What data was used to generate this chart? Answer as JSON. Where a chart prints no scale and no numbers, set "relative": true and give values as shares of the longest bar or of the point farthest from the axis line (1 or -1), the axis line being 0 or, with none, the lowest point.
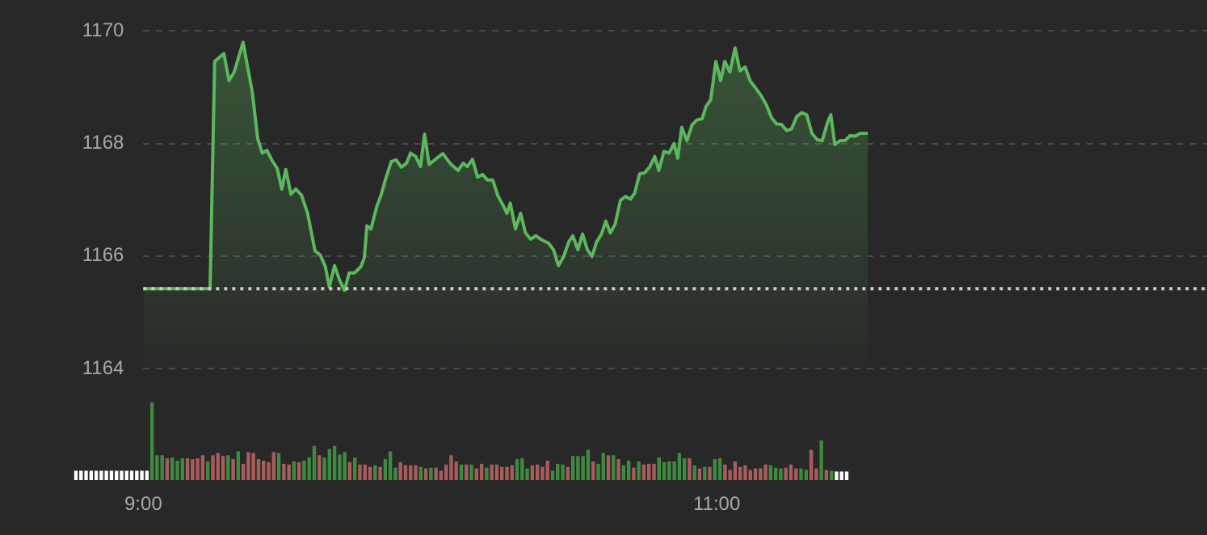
{
  "chart_data": [
    {
      "type": "area",
      "color": "#5cb85c",
      "xlim": [
        9,
        12.71
      ],
      "xticks": [
        {
          "value": 9,
          "label": "9:00"
        },
        {
          "value": 11,
          "label": "11:00"
        }
      ],
      "ylim": [
        1164,
        1170
      ],
      "yticks": [
        1164,
        1166,
        1168,
        1170
      ],
      "grid": "y",
      "ref_lines": [
        {
          "axis": "y",
          "value": 1165.42,
          "color": "#cccccc",
          "line_style": "dotted"
        }
      ],
      "x": [
        9,
        9.233,
        9.249,
        9.281,
        9.299,
        9.317,
        9.348,
        9.38,
        9.399,
        9.415,
        9.431,
        9.449,
        9.467,
        9.483,
        9.497,
        9.515,
        9.532,
        9.552,
        9.573,
        9.599,
        9.617,
        9.635,
        9.649,
        9.667,
        9.684,
        9.702,
        9.718,
        9.737,
        9.759,
        9.771,
        9.78,
        9.794,
        9.815,
        9.829,
        9.847,
        9.865,
        9.882,
        9.9,
        9.918,
        9.932,
        9.95,
        9.967,
        9.981,
        9.997,
        10.024,
        10.045,
        10.073,
        10.098,
        10.116,
        10.13,
        10.148,
        10.166,
        10.183,
        10.201,
        10.219,
        10.236,
        10.254,
        10.268,
        10.28,
        10.298,
        10.316,
        10.333,
        10.351,
        10.369,
        10.392,
        10.413,
        10.431,
        10.448,
        10.466,
        10.484,
        10.498,
        10.516,
        10.532,
        10.549,
        10.565,
        10.581,
        10.598,
        10.613,
        10.629,
        10.646,
        10.664,
        10.682,
        10.699,
        10.714,
        10.731,
        10.749,
        10.767,
        10.784,
        10.798,
        10.816,
        10.834,
        10.851,
        10.864,
        10.878,
        10.896,
        10.914,
        10.931,
        10.949,
        10.963,
        10.979,
        10.997,
        11.014,
        11.028,
        11.046,
        11.064,
        11.081,
        11.099,
        11.117,
        11.138,
        11.155,
        11.173,
        11.191,
        11.208,
        11.226,
        11.244,
        11.261,
        11.279,
        11.297,
        11.314,
        11.332,
        11.35,
        11.368,
        11.386,
        11.398,
        11.412,
        11.43,
        11.447,
        11.465,
        11.483,
        11.5,
        11.527
      ],
      "values": [
        1165.42,
        1165.42,
        1169.46,
        1169.6,
        1169.12,
        1169.27,
        1169.8,
        1168.92,
        1168.09,
        1167.83,
        1167.88,
        1167.7,
        1167.56,
        1167.19,
        1167.54,
        1167.1,
        1167.19,
        1167.08,
        1166.76,
        1166.09,
        1166.02,
        1165.81,
        1165.45,
        1165.83,
        1165.58,
        1165.39,
        1165.7,
        1165.7,
        1165.81,
        1165.97,
        1166.54,
        1166.48,
        1166.89,
        1167.08,
        1167.4,
        1167.68,
        1167.71,
        1167.58,
        1167.65,
        1167.83,
        1167.77,
        1167.59,
        1168.17,
        1167.63,
        1167.74,
        1167.82,
        1167.63,
        1167.52,
        1167.65,
        1167.59,
        1167.72,
        1167.4,
        1167.45,
        1167.35,
        1167.35,
        1167.08,
        1166.91,
        1166.76,
        1166.94,
        1166.48,
        1166.76,
        1166.41,
        1166.3,
        1166.36,
        1166.28,
        1166.23,
        1166.11,
        1165.83,
        1165.99,
        1166.25,
        1166.36,
        1166.11,
        1166.39,
        1166.11,
        1165.99,
        1166.25,
        1166.39,
        1166.62,
        1166.41,
        1166.57,
        1166.99,
        1167.06,
        1167.01,
        1167.12,
        1167.46,
        1167.48,
        1167.59,
        1167.77,
        1167.52,
        1167.86,
        1167.83,
        1168,
        1167.74,
        1168.29,
        1168.05,
        1168.33,
        1168.42,
        1168.44,
        1168.66,
        1168.78,
        1169.46,
        1169.12,
        1169.46,
        1169.27,
        1169.7,
        1169.29,
        1169.36,
        1169.11,
        1168.97,
        1168.85,
        1168.69,
        1168.46,
        1168.35,
        1168.34,
        1168.23,
        1168.26,
        1168.48,
        1168.55,
        1168.51,
        1168.18,
        1168.07,
        1168.05,
        1168.37,
        1168.51,
        1167.98,
        1168.05,
        1168.05,
        1168.14,
        1168.13,
        1168.18,
        1168.18
      ]
    },
    {
      "type": "bar",
      "relative": true,
      "categories": [
        null,
        null,
        null,
        null,
        null,
        null,
        null,
        null,
        null,
        null,
        null,
        null,
        null,
        null,
        null,
        null,
        null,
        null,
        null,
        null,
        null,
        null,
        null,
        null,
        null,
        null,
        null,
        null,
        null,
        null,
        null,
        null,
        null,
        null,
        null,
        null,
        null,
        null,
        null,
        null,
        null,
        null,
        null,
        null,
        null,
        null,
        null,
        null,
        null,
        null,
        null,
        null,
        null,
        null,
        null,
        null,
        null,
        null,
        null,
        null,
        null,
        null,
        null,
        null,
        null,
        null,
        null,
        null,
        null,
        null,
        null,
        null,
        null,
        null,
        null,
        null,
        null,
        null,
        null,
        null,
        null,
        null,
        null,
        null,
        null,
        null,
        null,
        null,
        null,
        null,
        null,
        null,
        null,
        null,
        null,
        null,
        null,
        null,
        null,
        null,
        null,
        null,
        null,
        null,
        null,
        null,
        null,
        null,
        null,
        null,
        null,
        null,
        null,
        null,
        null,
        null,
        null,
        null,
        null,
        null,
        null,
        null,
        null,
        null,
        null,
        null,
        null,
        null,
        null,
        null,
        null,
        null,
        null,
        null,
        null,
        null,
        null,
        null,
        null,
        null,
        null,
        null,
        null,
        null,
        null,
        null,
        null,
        null,
        null,
        null,
        null,
        null,
        null
      ],
      "values": [
        0.12,
        0.12,
        0.12,
        0.12,
        0.12,
        0.12,
        0.12,
        0.12,
        0.12,
        0.12,
        0.12,
        0.12,
        0.12,
        0.12,
        0.12,
        1,
        0.32,
        0.32,
        0.28,
        0.29,
        0.25,
        0.28,
        0.28,
        0.27,
        0.28,
        0.32,
        0.24,
        0.32,
        0.35,
        0.31,
        0.32,
        0.27,
        0.37,
        0.21,
        0.36,
        0.35,
        0.27,
        0.25,
        0.23,
        0.36,
        0.35,
        0.21,
        0.2,
        0.24,
        0.23,
        0.25,
        0.29,
        0.44,
        0.32,
        0.29,
        0.4,
        0.44,
        0.33,
        0.36,
        0.23,
        0.29,
        0.2,
        0.2,
        0.17,
        0.19,
        0.17,
        0.27,
        0.37,
        0.16,
        0.23,
        0.19,
        0.19,
        0.19,
        0.17,
        0.15,
        0.16,
        0.16,
        0.12,
        0.2,
        0.32,
        0.24,
        0.2,
        0.2,
        0.2,
        0.15,
        0.21,
        0.16,
        0.2,
        0.2,
        0.17,
        0.17,
        0.19,
        0.27,
        0.28,
        0.15,
        0.19,
        0.2,
        0.17,
        0.25,
        0.12,
        0.21,
        0.2,
        0.17,
        0.31,
        0.31,
        0.31,
        0.39,
        0.24,
        0.21,
        0.35,
        0.32,
        0.32,
        0.27,
        0.19,
        0.25,
        0.16,
        0.24,
        0.2,
        0.21,
        0.21,
        0.29,
        0.23,
        0.24,
        0.24,
        0.35,
        0.28,
        0.28,
        0.19,
        0.15,
        0.17,
        0.17,
        0.27,
        0.28,
        0.2,
        0.13,
        0.24,
        0.17,
        0.19,
        0.13,
        0.15,
        0.15,
        0.2,
        0.19,
        0.16,
        0.15,
        0.16,
        0.2,
        0.15,
        0.15,
        0.13,
        0.39,
        0.15,
        0.51,
        0.13,
        0.12,
        0.11,
        0.11,
        0.11
      ],
      "colors": [
        "#ffffff",
        "#ffffff",
        "#ffffff",
        "#ffffff",
        "#ffffff",
        "#ffffff",
        "#ffffff",
        "#ffffff",
        "#ffffff",
        "#ffffff",
        "#ffffff",
        "#ffffff",
        "#ffffff",
        "#ffffff",
        "#ffffff",
        "#3f8a3f",
        "#3f8a3f",
        "#3f8a3f",
        "#a95c5c",
        "#3f8a3f",
        "#3f8a3f",
        "#3f8a3f",
        "#a95c5c",
        "#a95c5c",
        "#a95c5c",
        "#a95c5c",
        "#3f8a3f",
        "#a95c5c",
        "#a95c5c",
        "#a95c5c",
        "#3f8a3f",
        "#a95c5c",
        "#3f8a3f",
        "#a95c5c",
        "#a95c5c",
        "#a95c5c",
        "#a95c5c",
        "#a95c5c",
        "#a95c5c",
        "#a95c5c",
        "#3f8a3f",
        "#a95c5c",
        "#a95c5c",
        "#3f8a3f",
        "#a95c5c",
        "#3f8a3f",
        "#3f8a3f",
        "#3f8a3f",
        "#a95c5c",
        "#3f8a3f",
        "#3f8a3f",
        "#3f8a3f",
        "#3f8a3f",
        "#3f8a3f",
        "#a95c5c",
        "#3f8a3f",
        "#a95c5c",
        "#a95c5c",
        "#a95c5c",
        "#3f8a3f",
        "#a95c5c",
        "#3f8a3f",
        "#3f8a3f",
        "#3f8a3f",
        "#a95c5c",
        "#a95c5c",
        "#a95c5c",
        "#a95c5c",
        "#3f8a3f",
        "#a95c5c",
        "#3f8a3f",
        "#a95c5c",
        "#a95c5c",
        "#a95c5c",
        "#a95c5c",
        "#a95c5c",
        "#3f8a3f",
        "#a95c5c",
        "#3f8a3f",
        "#a95c5c",
        "#a95c5c",
        "#3f8a3f",
        "#a95c5c",
        "#a95c5c",
        "#a95c5c",
        "#a95c5c",
        "#a95c5c",
        "#3f8a3f",
        "#3f8a3f",
        "#3f8a3f",
        "#a95c5c",
        "#a95c5c",
        "#a95c5c",
        "#a95c5c",
        "#3f8a3f",
        "#3f8a3f",
        "#3f8a3f",
        "#a95c5c",
        "#3f8a3f",
        "#3f8a3f",
        "#3f8a3f",
        "#3f8a3f",
        "#a95c5c",
        "#3f8a3f",
        "#3f8a3f",
        "#a95c5c",
        "#3f8a3f",
        "#a95c5c",
        "#3f8a3f",
        "#3f8a3f",
        "#a95c5c",
        "#3f8a3f",
        "#a95c5c",
        "#a95c5c",
        "#a95c5c",
        "#3f8a3f",
        "#3f8a3f",
        "#3f8a3f",
        "#3f8a3f",
        "#3f8a3f",
        "#3f8a3f",
        "#a95c5c",
        "#3f8a3f",
        "#a95c5c",
        "#3f8a3f",
        "#a95c5c",
        "#3f8a3f",
        "#3f8a3f",
        "#a95c5c",
        "#a95c5c",
        "#a95c5c",
        "#a95c5c",
        "#a95c5c",
        "#a95c5c",
        "#a95c5c",
        "#a95c5c",
        "#a95c5c",
        "#3f8a3f",
        "#3f8a3f",
        "#3f8a3f",
        "#a95c5c",
        "#a95c5c",
        "#a95c5c",
        "#3f8a3f",
        "#3f8a3f",
        "#a95c5c",
        "#a95c5c",
        "#3f8a3f",
        "#a95c5c",
        "#3f8a3f",
        "#ffffff",
        "#ffffff",
        "#ffffff"
      ]
    }
  ]
}
